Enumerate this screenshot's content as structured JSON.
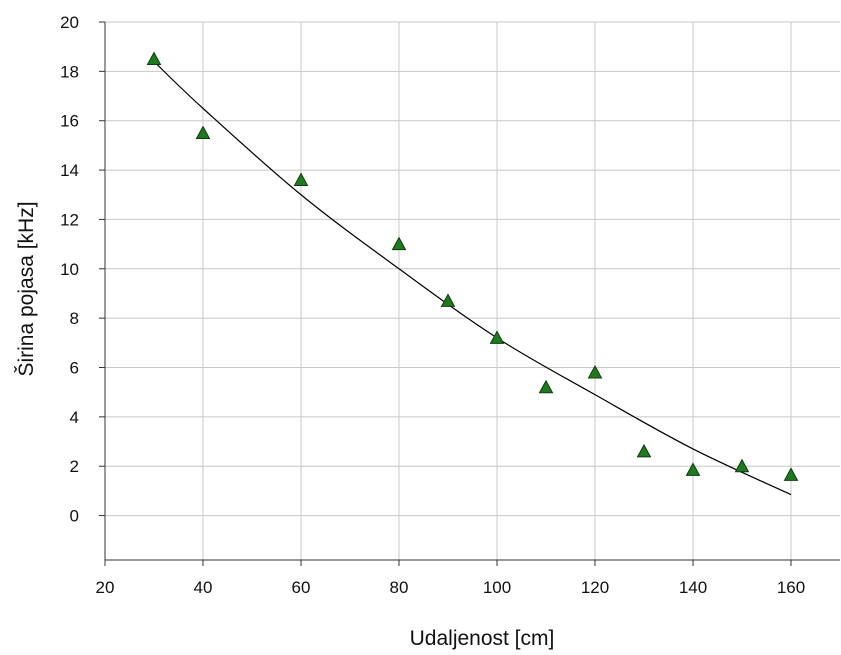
{
  "chart_data": {
    "type": "scatter",
    "title": "",
    "xlabel": "Udaljenost  [cm]",
    "ylabel": "Širina pojasa [kHz]",
    "xlim": [
      20,
      170
    ],
    "ylim": [
      -1.8,
      20
    ],
    "x_ticks": [
      20,
      40,
      60,
      80,
      100,
      120,
      140,
      160
    ],
    "y_ticks": [
      0,
      2,
      4,
      6,
      8,
      10,
      12,
      14,
      16,
      18,
      20
    ],
    "grid": true,
    "legend": "none",
    "series": [
      {
        "marker": "triangle",
        "color": "#1f7a1f",
        "points": [
          {
            "x": 30,
            "y": 18.5
          },
          {
            "x": 40,
            "y": 15.5
          },
          {
            "x": 60,
            "y": 13.6
          },
          {
            "x": 80,
            "y": 11.0
          },
          {
            "x": 90,
            "y": 8.7
          },
          {
            "x": 100,
            "y": 7.2
          },
          {
            "x": 110,
            "y": 5.2
          },
          {
            "x": 120,
            "y": 5.8
          },
          {
            "x": 130,
            "y": 2.6
          },
          {
            "x": 140,
            "y": 1.85
          },
          {
            "x": 150,
            "y": 2.0
          },
          {
            "x": 160,
            "y": 1.65
          }
        ]
      },
      {
        "type": "line",
        "role": "trend",
        "color": "#000000",
        "points": [
          {
            "x": 30,
            "y": 18.4
          },
          {
            "x": 40,
            "y": 16.5
          },
          {
            "x": 60,
            "y": 13.0
          },
          {
            "x": 80,
            "y": 10.0
          },
          {
            "x": 100,
            "y": 7.2
          },
          {
            "x": 120,
            "y": 4.9
          },
          {
            "x": 140,
            "y": 2.7
          },
          {
            "x": 160,
            "y": 0.85
          }
        ]
      }
    ]
  }
}
